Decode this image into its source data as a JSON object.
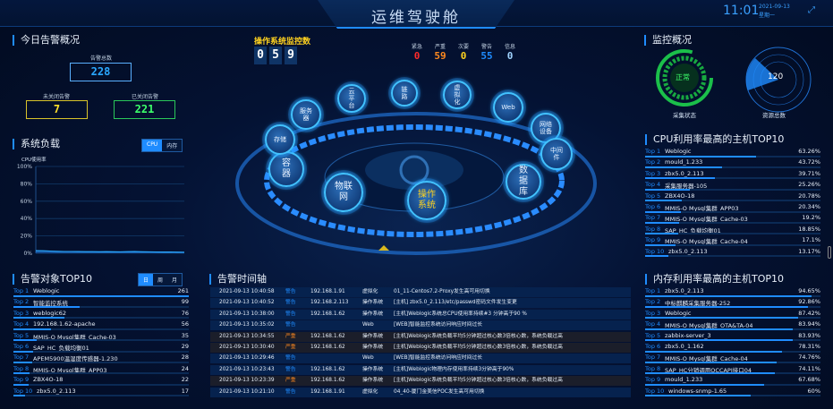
{
  "header": {
    "title": "运维驾驶舱",
    "time": "11:01",
    "date": "2021-09-13",
    "weekday": "星期一",
    "fullscreen_icon": "expand-icon"
  },
  "alarm_overview": {
    "title": "今日告警概况",
    "total_label": "告警总数",
    "total": "228",
    "open_label": "未关闭告警",
    "open": "7",
    "closed_label": "已关闭告警",
    "closed": "221"
  },
  "system_load": {
    "title": "系统负载",
    "tabs": [
      "CPU",
      "内存"
    ],
    "active_tab": "CPU",
    "chart_data": {
      "type": "area",
      "ylabel": "CPU使用率",
      "yticks": [
        "100%",
        "80%",
        "60%",
        "40%",
        "20%",
        "0%"
      ],
      "ylim": [
        0,
        100
      ],
      "values": [
        3,
        2.8,
        2.5,
        2.2,
        2,
        2,
        1.9,
        1.8,
        1.8,
        1.7,
        1.8,
        1.7,
        1.6,
        1.8,
        1.9,
        1.7,
        1.6,
        1.5,
        1.4,
        1.5,
        1.3,
        1.2
      ]
    }
  },
  "os_monitor": {
    "title": "操作系统监控数",
    "digits": [
      "0",
      "5",
      "9"
    ],
    "levels": [
      {
        "label": "紧急",
        "value": "0",
        "color": "#ff2a2a"
      },
      {
        "label": "严重",
        "value": "59",
        "color": "#ff8a1f"
      },
      {
        "label": "次要",
        "value": "0",
        "color": "#ffd21f"
      },
      {
        "label": "警告",
        "value": "55",
        "color": "#1f8cff"
      },
      {
        "label": "信息",
        "value": "0",
        "color": "#9fd3ff"
      }
    ]
  },
  "categories": [
    {
      "label": "云平台"
    },
    {
      "label": "链路"
    },
    {
      "label": "虚拟化"
    },
    {
      "label": "Web"
    },
    {
      "label": "网络设备"
    },
    {
      "label": "中间件"
    },
    {
      "label": "数据库"
    },
    {
      "label": "操作系统",
      "active": true
    },
    {
      "label": "物联网"
    },
    {
      "label": "容器"
    },
    {
      "label": "存储"
    },
    {
      "label": "服务器"
    }
  ],
  "monitor_overview": {
    "title": "监控概况",
    "status": "正常",
    "status_label": "采集状态",
    "resource_total": "120",
    "resource_label": "资源总数"
  },
  "alarm_top": {
    "title": "告警对象TOP10",
    "tabs": [
      "日",
      "周",
      "月"
    ],
    "active_tab": "日",
    "max": 261,
    "items": [
      {
        "rank": "Top 1",
        "name": "Weblogic",
        "value": "261"
      },
      {
        "rank": "Top 2",
        "name": "智能监控系统",
        "value": "99"
      },
      {
        "rank": "Top 3",
        "name": "weblogic62",
        "value": "76"
      },
      {
        "rank": "Top 4",
        "name": "192.168.1.62-apache",
        "value": "56"
      },
      {
        "rank": "Top 5",
        "name": "MMIS-O Mysql集群_Cache-03",
        "value": "35"
      },
      {
        "rank": "Top 6",
        "name": "SAP_HC_负载均衡01",
        "value": "29"
      },
      {
        "rank": "Top 7",
        "name": "APEM5900温湿度传感器-1.230",
        "value": "28"
      },
      {
        "rank": "Top 8",
        "name": "MMIS-O Mysql集群_APP03",
        "value": "24"
      },
      {
        "rank": "Top 9",
        "name": "ZBX4O-18",
        "value": "22"
      },
      {
        "rank": "Top 10",
        "name": "zbx5.0_2.113",
        "value": "17"
      }
    ]
  },
  "timeline": {
    "title": "告警时间轴",
    "rows": [
      {
        "time": "2021-09-13 10:40:58",
        "level": "警告",
        "ip": "192.168.1.91",
        "type": "虚拟化",
        "desc": "01_11-Centos7.2-Proxy发生高可用切换"
      },
      {
        "time": "2021-09-13 10:40:52",
        "level": "警告",
        "ip": "192.168.2.113",
        "type": "操作系统",
        "desc": "[主机] zbx5.0_2.113/etc/passwd密码文件发生变更"
      },
      {
        "time": "2021-09-13 10:38:00",
        "level": "警告",
        "ip": "192.168.1.62",
        "type": "操作系统",
        "desc": "[主机]Weblogic系统总CPU使用率持续#3 分钟高于90 %"
      },
      {
        "time": "2021-09-13 10:35:02",
        "level": "警告",
        "ip": "",
        "type": "Web",
        "desc": "[WEB]智能监控系统访问响应时间过长"
      },
      {
        "time": "2021-09-13 10:34:55",
        "level": "严重",
        "ip": "192.168.1.62",
        "type": "操作系统",
        "desc": "[主机]Weblogic系统负载平均5分钟超过核心数3倍核心数，系统负载过高"
      },
      {
        "time": "2021-09-13 10:30:40",
        "level": "严重",
        "ip": "192.168.1.62",
        "type": "操作系统",
        "desc": "[主机]Weblogic系统负载平均5分钟超过核心数3倍核心数，系统负载过高"
      },
      {
        "time": "2021-09-13 10:29:46",
        "level": "警告",
        "ip": "",
        "type": "Web",
        "desc": "[WEB]智能监控系统访问响应时间过长"
      },
      {
        "time": "2021-09-13 10:23:43",
        "level": "警告",
        "ip": "192.168.1.62",
        "type": "操作系统",
        "desc": "[主机]Weblogic物理内存使用率持续3分钟高于90%"
      },
      {
        "time": "2021-09-13 10:23:39",
        "level": "严重",
        "ip": "192.168.1.62",
        "type": "操作系统",
        "desc": "[主机]Weblogic系统负载平均5分钟超过核心数3倍核心数，系统负载过高"
      },
      {
        "time": "2021-09-13 10:21:10",
        "level": "警告",
        "ip": "192.168.1.91",
        "type": "虚拟化",
        "desc": "04_40-厦门金美信POC发生高可用切换"
      }
    ]
  },
  "cpu_top": {
    "title": "CPU利用率最高的主机TOP10",
    "items": [
      {
        "rank": "Top 1",
        "name": "Weblogic",
        "value": "63.26%"
      },
      {
        "rank": "Top 2",
        "name": "mould_1.233",
        "value": "43.72%"
      },
      {
        "rank": "Top 3",
        "name": "zbx5.0_2.113",
        "value": "39.71%"
      },
      {
        "rank": "Top 4",
        "name": "采集服务器-105",
        "value": "25.26%"
      },
      {
        "rank": "Top 5",
        "name": "ZBX4O-18",
        "value": "20.78%"
      },
      {
        "rank": "Top 6",
        "name": "MMIS-O Mysql集群_APP03",
        "value": "20.34%"
      },
      {
        "rank": "Top 7",
        "name": "MMIS-O Mysql集群_Cache-03",
        "value": "19.2%"
      },
      {
        "rank": "Top 8",
        "name": "SAP_HC_负载均衡01",
        "value": "18.85%"
      },
      {
        "rank": "Top 9",
        "name": "MMIS-O Mysql集群_Cache-04",
        "value": "17.1%"
      },
      {
        "rank": "Top 10",
        "name": "zbx5.0_2.113",
        "value": "13.17%"
      }
    ]
  },
  "mem_top": {
    "title": "内存利用率最高的主机TOP10",
    "items": [
      {
        "rank": "Top 1",
        "name": "zbx5.0_2.113",
        "value": "94.65%"
      },
      {
        "rank": "Top 2",
        "name": "中标麒麟采集服务器-252",
        "value": "92.86%"
      },
      {
        "rank": "Top 3",
        "name": "Weblogic",
        "value": "87.42%"
      },
      {
        "rank": "Top 4",
        "name": "MMIS-O Mysql集群_OTA&TA-04",
        "value": "83.94%"
      },
      {
        "rank": "Top 5",
        "name": "zabbix-server_3",
        "value": "83.93%"
      },
      {
        "rank": "Top 6",
        "name": "zbx5.0_1.162",
        "value": "78.31%"
      },
      {
        "rank": "Top 7",
        "name": "MMIS-O Mysql集群_Cache-04",
        "value": "74.76%"
      },
      {
        "rank": "Top 8",
        "name": "SAP_HC分销调用OCCAPI接口04",
        "value": "74.11%"
      },
      {
        "rank": "Top 9",
        "name": "mould_1.233",
        "value": "67.68%"
      },
      {
        "rank": "Top 10",
        "name": "windows-snmp-1.65",
        "value": "60%"
      }
    ]
  }
}
